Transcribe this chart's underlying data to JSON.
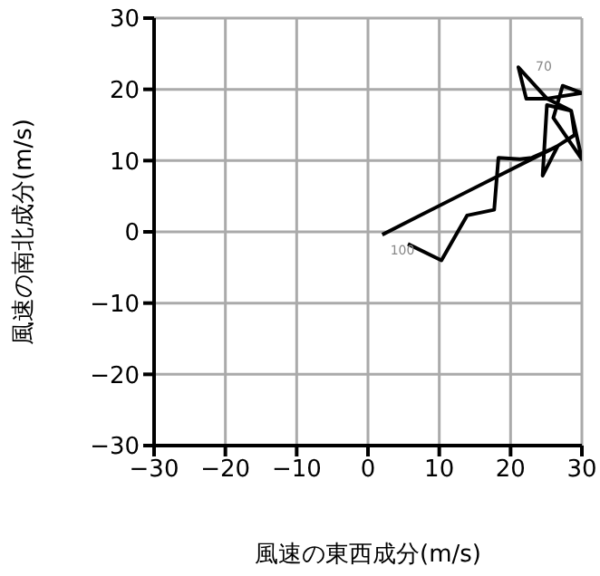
{
  "chart_data": {
    "type": "line",
    "xlabel": "風速の東西成分(m/s)",
    "ylabel": "風速の南北成分(m/s)",
    "series": [
      {
        "color": "#000000",
        "x": [
          5.6,
          10.3,
          13.9,
          17.7,
          18.3,
          21.3,
          23.0,
          26.6,
          24.5,
          25.1,
          28.5,
          30.0,
          26.0,
          27.3,
          30.0,
          25.1,
          22.2,
          21.1,
          25.1,
          28.5,
          29.0,
          26.5,
          6.9,
          2.0
        ],
        "values": [
          -1.7,
          -4.0,
          2.3,
          3.1,
          10.4,
          10.2,
          10.4,
          12.0,
          7.9,
          17.8,
          17.0,
          10.2,
          16.0,
          20.5,
          19.5,
          18.7,
          18.7,
          23.1,
          18.7,
          17.0,
          13.6,
          12.0,
          2.1,
          -0.4
        ]
      }
    ],
    "annotations": [
      {
        "text": "100",
        "x": 5.6,
        "y": -1.7
      },
      {
        "text": "70",
        "x": 21.1,
        "y": 23.1
      }
    ],
    "xlim": [
      -30,
      30
    ],
    "xticks": [
      -30,
      -20,
      -10,
      0,
      10,
      20,
      30
    ],
    "ylim": [
      -30,
      30
    ],
    "yticks": [
      -30,
      -20,
      -10,
      0,
      10,
      20,
      30
    ],
    "grid": true,
    "legend": false,
    "marker": "none",
    "line_style": "solid"
  }
}
